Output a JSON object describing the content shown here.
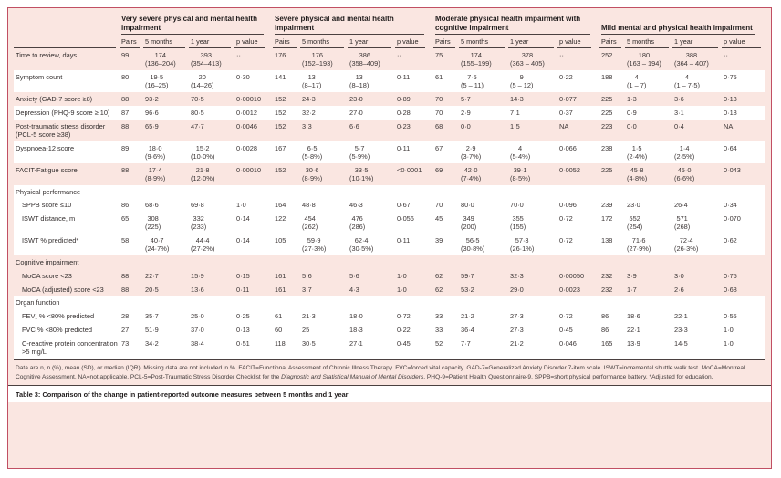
{
  "table": {
    "groups": [
      {
        "title": "Very severe physical and mental health impairment"
      },
      {
        "title": "Severe physical and mental health impairment"
      },
      {
        "title": "Moderate physical health impairment with cognitive impairment"
      },
      {
        "title": "Mild mental and physical health impairment"
      }
    ],
    "subheaders": [
      "Pairs",
      "5 months",
      "1 year",
      "p value"
    ],
    "rows": [
      {
        "label": "Time to review, days",
        "section": false,
        "shade": "pink",
        "indent": false,
        "cells": [
          "99",
          "174\n(136–204)",
          "393\n(354–413)",
          "··",
          "176",
          "176\n(152–193)",
          "386\n(358–409)",
          "··",
          "75",
          "174\n(155–199)",
          "378\n(363 – 405)",
          "··",
          "252",
          "180\n(163 – 194)",
          "388\n(364 – 407)",
          "··"
        ]
      },
      {
        "label": "Symptom count",
        "section": false,
        "shade": "white",
        "indent": false,
        "cells": [
          "80",
          "19·5\n(16–25)",
          "20\n(14–26)",
          "0·30",
          "141",
          "13\n(8–17)",
          "13\n(8–18)",
          "0·11",
          "61",
          "7·5\n(5 – 11)",
          "9\n(5 – 12)",
          "0·22",
          "188",
          "4\n(1 – 7)",
          "4\n(1 – 7·5)",
          "0·75"
        ]
      },
      {
        "label": "Anxiety (GAD-7 score ≥8)",
        "section": false,
        "shade": "pink",
        "indent": false,
        "cells": [
          "88",
          "93·2",
          "70·5",
          "0·00010",
          "152",
          "24·3",
          "23·0",
          "0·89",
          "70",
          "5·7",
          "14·3",
          "0·077",
          "225",
          "1·3",
          "3·6",
          "0·13"
        ]
      },
      {
        "label": "Depression (PHQ-9 score ≥ 10)",
        "section": false,
        "shade": "white",
        "indent": false,
        "cells": [
          "87",
          "96·6",
          "80·5",
          "0·0012",
          "152",
          "32·2",
          "27·0",
          "0·28",
          "70",
          "2·9",
          "7·1",
          "0·37",
          "225",
          "0·9",
          "3·1",
          "0·18"
        ]
      },
      {
        "label": "Post-traumatic stress disorder (PCL-5 score ≥38)",
        "section": false,
        "shade": "pink",
        "indent": false,
        "cells": [
          "88",
          "65·9",
          "47·7",
          "0·0046",
          "152",
          "3·3",
          "6·6",
          "0·23",
          "68",
          "0·0",
          "1·5",
          "NA",
          "223",
          "0·0",
          "0·4",
          "NA"
        ]
      },
      {
        "label": "Dyspnoea-12 score",
        "section": false,
        "shade": "white",
        "indent": false,
        "cells": [
          "89",
          "18·0\n(9·6%)",
          "15·2\n(10·0%)",
          "0·0028",
          "167",
          "6·5\n(5·8%)",
          "5·7\n(5·9%)",
          "0·11",
          "67",
          "2·9\n(3·7%)",
          "4\n(5·4%)",
          "0·066",
          "238",
          "1·5\n(2·4%)",
          "1·4\n(2·5%)",
          "0·64"
        ]
      },
      {
        "label": "FACIT-Fatigue score",
        "section": false,
        "shade": "pink",
        "indent": false,
        "cells": [
          "88",
          "17·4\n(8·9%)",
          "21·8\n(12·0%)",
          "0·00010",
          "152",
          "30·6\n(8·9%)",
          "33·5\n(10·1%)",
          "<0·0001",
          "69",
          "42·0\n(7·4%)",
          "39·1\n(8·5%)",
          "0·0052",
          "225",
          "45·8\n(4·8%)",
          "45·0\n(6·6%)",
          "0·043"
        ]
      },
      {
        "label": "Physical performance",
        "section": true,
        "shade": "white",
        "indent": false,
        "cells": []
      },
      {
        "label": "SPPB score ≤10",
        "section": false,
        "shade": "white",
        "indent": true,
        "cells": [
          "86",
          "68·6",
          "69·8",
          "1·0",
          "164",
          "48·8",
          "46·3",
          "0·67",
          "70",
          "80·0",
          "70·0",
          "0·096",
          "239",
          "23·0",
          "26·4",
          "0·34"
        ]
      },
      {
        "label": "ISWT distance, m",
        "section": false,
        "shade": "white",
        "indent": true,
        "cells": [
          "65",
          "308\n(225)",
          "332\n(233)",
          "0·14",
          "122",
          "454\n(262)",
          "476\n(286)",
          "0·056",
          "45",
          "349\n(200)",
          "355\n(155)",
          "0·72",
          "172",
          "552\n(254)",
          "571\n(268)",
          "0·070"
        ]
      },
      {
        "label": "ISWT % predicted*",
        "section": false,
        "shade": "white",
        "indent": true,
        "cells": [
          "58",
          "40·7\n(24·7%)",
          "44·4\n(27·2%)",
          "0·14",
          "105",
          "59·9\n(27·3%)",
          "62·4\n(30·5%)",
          "0·11",
          "39",
          "56·5\n(30·8%)",
          "57·3\n(26·1%)",
          "0·72",
          "138",
          "71·6\n(27·9%)",
          "72·4\n(26·3%)",
          "0·62"
        ]
      },
      {
        "label": "Cognitive impairment",
        "section": true,
        "shade": "pink",
        "indent": false,
        "cells": []
      },
      {
        "label": "MoCA score <23",
        "section": false,
        "shade": "pink",
        "indent": true,
        "cells": [
          "88",
          "22·7",
          "15·9",
          "0·15",
          "161",
          "5·6",
          "5·6",
          "1·0",
          "62",
          "59·7",
          "32·3",
          "0·00050",
          "232",
          "3·9",
          "3·0",
          "0·75"
        ]
      },
      {
        "label": "MoCA (adjusted) score <23",
        "section": false,
        "shade": "pink",
        "indent": true,
        "cells": [
          "88",
          "20·5",
          "13·6",
          "0·11",
          "161",
          "3·7",
          "4·3",
          "1·0",
          "62",
          "53·2",
          "29·0",
          "0·0023",
          "232",
          "1·7",
          "2·6",
          "0·68"
        ]
      },
      {
        "label": "Organ function",
        "section": true,
        "shade": "white",
        "indent": false,
        "cells": []
      },
      {
        "label": "FEV₁ % <80% predicted",
        "section": false,
        "shade": "white",
        "indent": true,
        "cells": [
          "28",
          "35·7",
          "25·0",
          "0·25",
          "61",
          "21·3",
          "18·0",
          "0·72",
          "33",
          "21·2",
          "27·3",
          "0·72",
          "86",
          "18·6",
          "22·1",
          "0·55"
        ]
      },
      {
        "label": "FVC % <80% predicted",
        "section": false,
        "shade": "white",
        "indent": true,
        "cells": [
          "27",
          "51·9",
          "37·0",
          "0·13",
          "60",
          "25",
          "18·3",
          "0·22",
          "33",
          "36·4",
          "27·3",
          "0·45",
          "86",
          "22·1",
          "23·3",
          "1·0"
        ]
      },
      {
        "label": "C-reactive protein concentration >5 mg/L",
        "section": false,
        "shade": "white",
        "indent": true,
        "cells": [
          "73",
          "34·2",
          "38·4",
          "0·51",
          "118",
          "30·5",
          "27·1",
          "0·45",
          "52",
          "7·7",
          "21·2",
          "0·046",
          "165",
          "13·9",
          "14·5",
          "1·0"
        ]
      }
    ]
  },
  "footnote": {
    "part1": "Data are n, n (%), mean (SD), or median (IQR). Missing data are not included in %. FACIT=Functional Assessment of Chronic Illness Therapy. FVC=forced vital capacity. GAD-7=Generalized Anxiety Disorder 7-item scale. ISWT=incremental shuttle walk test. MoCA=Montreal Cognitive Assessment. NA=not applicable. PCL-5=Post-Traumatic Stress Disorder Checklist for the ",
    "italic": "Diagnostic and Statistical Manual of Mental Disorders",
    "part2": ". PHQ-9=Patient Health Questionnaire-9. SPPB=short physical performance battery. *Adjusted for education."
  },
  "caption": {
    "label": "Table 3:",
    "text": " Comparison of the change in patient-reported outcome measures between 5 months and 1 year"
  },
  "colors": {
    "frame": "#c14f63",
    "row_pink": "#fae6e1",
    "row_white": "#ffffff",
    "rule": "#4a4040"
  }
}
